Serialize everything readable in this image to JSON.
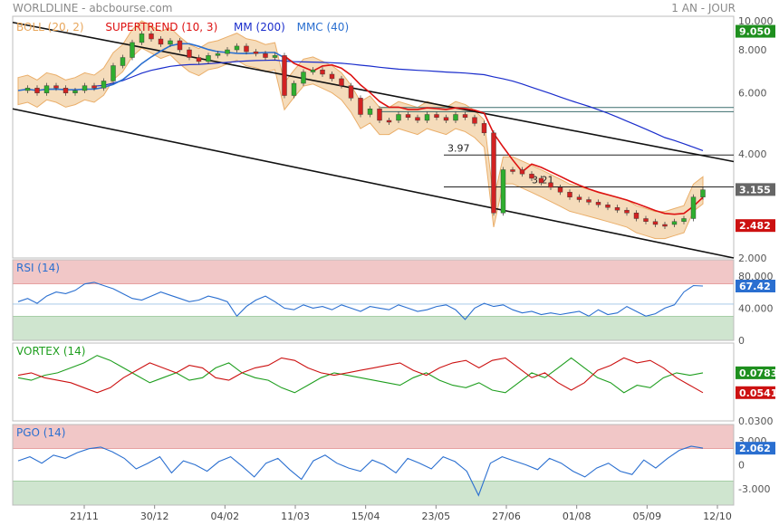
{
  "header": {
    "title": "WORLDLINE - abcbourse.com",
    "period": "1 AN - JOUR"
  },
  "colors": {
    "boll": "#e8a65a",
    "boll_fill": "#f5d9b4",
    "supertrend": "#dd1111",
    "mm": "#1a2dcc",
    "mmc": "#2a6fd0",
    "rsi_line": "#2a6fd0",
    "vortex_plus": "#1e9e1e",
    "vortex_minus": "#cc1111",
    "pgo_line": "#2a6fd0",
    "zone_red": "#f1c7c7",
    "zone_green": "#cfe5cf",
    "badge_green": "#1e8f1e",
    "badge_gray": "#666666",
    "badge_red": "#cc1111",
    "badge_blue": "#2a6fd0"
  },
  "chart_data": [
    {
      "type": "candlestick",
      "panel": "price",
      "indicators": [
        {
          "label": "BOLL (20, 2)",
          "color": "#e8a65a"
        },
        {
          "label": "SUPERTREND (10, 3)",
          "color": "#dd1111"
        },
        {
          "label": "MM (200)",
          "color": "#1a2dcc"
        },
        {
          "label": "MMC (40)",
          "color": "#2a6fd0"
        }
      ],
      "ylim": [
        2.0,
        10.0
      ],
      "y_scale": "log",
      "yticks": [
        {
          "value": 10.0,
          "label": "10.000"
        },
        {
          "value": 8.0,
          "label": "8.000"
        },
        {
          "value": 6.0,
          "label": "6.000"
        },
        {
          "value": 4.0,
          "label": "4.000"
        },
        {
          "value": 2.0,
          "label": "2.000"
        }
      ],
      "x_labels": [
        "21/11",
        "30/12",
        "04/02",
        "11/03",
        "15/04",
        "23/05",
        "27/06",
        "01/08",
        "05/09",
        "12/10"
      ],
      "close_path": [
        6.1,
        6.2,
        6.0,
        6.3,
        6.2,
        6.0,
        6.1,
        6.3,
        6.2,
        6.5,
        7.2,
        7.6,
        8.4,
        8.9,
        8.6,
        8.3,
        8.5,
        8.0,
        7.6,
        7.4,
        7.7,
        7.8,
        8.0,
        8.2,
        7.9,
        7.8,
        7.6,
        7.7,
        5.9,
        6.4,
        6.9,
        7.0,
        6.8,
        6.6,
        6.3,
        5.8,
        5.2,
        5.4,
        5.0,
        5.0,
        5.2,
        5.1,
        5.0,
        5.2,
        5.1,
        5.0,
        5.2,
        5.1,
        4.9,
        4.6,
        2.7,
        3.6,
        3.6,
        3.5,
        3.4,
        3.3,
        3.2,
        3.1,
        3.0,
        2.95,
        2.9,
        2.85,
        2.8,
        2.75,
        2.7,
        2.6,
        2.55,
        2.5,
        2.5,
        2.55,
        2.6,
        3.0,
        3.15
      ],
      "levels": [
        {
          "label": "3.97",
          "value": 3.97
        },
        {
          "label": "3.21",
          "value": 3.21
        },
        {
          "label": "",
          "value": 5.45
        },
        {
          "label": "",
          "value": 5.3
        }
      ],
      "trend_lines": [
        {
          "from": [
            "start",
            9.6
          ],
          "to": [
            "end",
            3.8
          ]
        },
        {
          "from": [
            "start",
            5.4
          ],
          "to": [
            "end",
            2.0
          ]
        }
      ],
      "badges": [
        {
          "label": "9.050",
          "value": 9.05,
          "color": "#1e8f1e"
        },
        {
          "label": "3.155",
          "value": 3.155,
          "color": "#666666"
        },
        {
          "label": "2.482",
          "value": 2.482,
          "color": "#cc1111"
        }
      ]
    },
    {
      "type": "line",
      "panel": "rsi",
      "indicator": {
        "label": "RSI (14)",
        "color": "#2a6fd0"
      },
      "ylim": [
        0,
        100
      ],
      "yticks": [
        {
          "value": 80,
          "label": "80.000"
        },
        {
          "value": 40,
          "label": "40.000"
        },
        {
          "value": 0,
          "label": "0"
        }
      ],
      "zones": [
        {
          "from": 70,
          "to": 100,
          "color": "#f1c7c7"
        },
        {
          "from": 0,
          "to": 30,
          "color": "#cfe5cf"
        }
      ],
      "values": [
        48,
        52,
        46,
        55,
        60,
        58,
        62,
        70,
        72,
        68,
        64,
        58,
        52,
        50,
        55,
        60,
        56,
        52,
        48,
        50,
        55,
        52,
        48,
        30,
        42,
        50,
        55,
        48,
        40,
        38,
        44,
        40,
        42,
        38,
        44,
        40,
        36,
        42,
        40,
        38,
        44,
        40,
        36,
        38,
        42,
        44,
        38,
        26,
        40,
        46,
        42,
        44,
        38,
        34,
        36,
        32,
        34,
        32,
        34,
        36,
        30,
        38,
        32,
        34,
        42,
        36,
        30,
        33,
        40,
        44,
        60,
        68,
        67.42
      ],
      "badge": {
        "label": "67.42",
        "value": 67.42,
        "color": "#2a6fd0"
      }
    },
    {
      "type": "line",
      "panel": "vortex",
      "indicator": {
        "label": "VORTEX (14)",
        "color": "#1e9e1e"
      },
      "ylim": [
        0.03,
        1.6
      ],
      "yticks": [
        {
          "value": 0.03,
          "label": "0.0300"
        }
      ],
      "series": [
        {
          "color": "#1e9e1e",
          "values": [
            0.9,
            0.85,
            0.95,
            1.0,
            1.1,
            1.2,
            1.35,
            1.25,
            1.1,
            0.95,
            0.8,
            0.9,
            1.0,
            0.85,
            0.9,
            1.1,
            1.2,
            1.0,
            0.9,
            0.85,
            0.7,
            0.6,
            0.75,
            0.9,
            1.0,
            0.95,
            0.9,
            0.85,
            0.8,
            0.75,
            0.9,
            1.0,
            0.85,
            0.75,
            0.7,
            0.8,
            0.65,
            0.6,
            0.8,
            1.0,
            0.9,
            1.1,
            1.3,
            1.1,
            0.9,
            0.8,
            0.6,
            0.75,
            0.7,
            0.9,
            1.0,
            0.95,
            1.0
          ]
        },
        {
          "color": "#cc1111",
          "values": [
            0.95,
            1.0,
            0.9,
            0.85,
            0.8,
            0.7,
            0.6,
            0.7,
            0.9,
            1.05,
            1.2,
            1.1,
            1.0,
            1.15,
            1.1,
            0.9,
            0.85,
            1.0,
            1.1,
            1.15,
            1.3,
            1.25,
            1.1,
            1.0,
            0.95,
            1.0,
            1.05,
            1.1,
            1.15,
            1.2,
            1.05,
            0.95,
            1.1,
            1.2,
            1.25,
            1.1,
            1.25,
            1.3,
            1.1,
            0.9,
            1.0,
            0.8,
            0.65,
            0.8,
            1.05,
            1.15,
            1.3,
            1.2,
            1.25,
            1.1,
            0.9,
            0.75,
            0.6
          ]
        }
      ],
      "badges": [
        {
          "label": "0.0783",
          "value": 1.0,
          "color": "#1e8f1e"
        },
        {
          "label": "0.0541",
          "value": 0.6,
          "color": "#cc1111"
        }
      ]
    },
    {
      "type": "line",
      "panel": "pgo",
      "indicator": {
        "label": "PGO (14)",
        "color": "#2a6fd0"
      },
      "ylim": [
        -5,
        5
      ],
      "yticks": [
        {
          "value": 3,
          "label": "3.000"
        },
        {
          "value": 0,
          "label": "0"
        },
        {
          "value": -3,
          "label": "-3.000"
        }
      ],
      "zones": [
        {
          "from": 2,
          "to": 5,
          "color": "#f1c7c7"
        },
        {
          "from": -5,
          "to": -2,
          "color": "#cfe5cf"
        }
      ],
      "values": [
        0.5,
        1.0,
        0.2,
        1.2,
        0.8,
        1.5,
        2.0,
        2.2,
        1.6,
        0.8,
        -0.5,
        0.2,
        1.0,
        -1.0,
        0.5,
        0.0,
        -0.8,
        0.4,
        1.0,
        -0.2,
        -1.5,
        0.2,
        0.8,
        -0.6,
        -1.8,
        0.5,
        1.2,
        0.2,
        -0.4,
        -0.8,
        0.6,
        0.0,
        -1.0,
        0.8,
        0.2,
        -0.5,
        1.0,
        0.4,
        -0.8,
        -3.8,
        0.2,
        1.0,
        0.5,
        0.0,
        -0.6,
        0.8,
        0.2,
        -0.8,
        -1.5,
        -0.4,
        0.2,
        -0.8,
        -1.2,
        0.6,
        -0.4,
        0.8,
        1.8,
        2.3,
        2.062
      ],
      "badge": {
        "label": "2.062",
        "value": 2.062,
        "color": "#2a6fd0"
      }
    }
  ]
}
